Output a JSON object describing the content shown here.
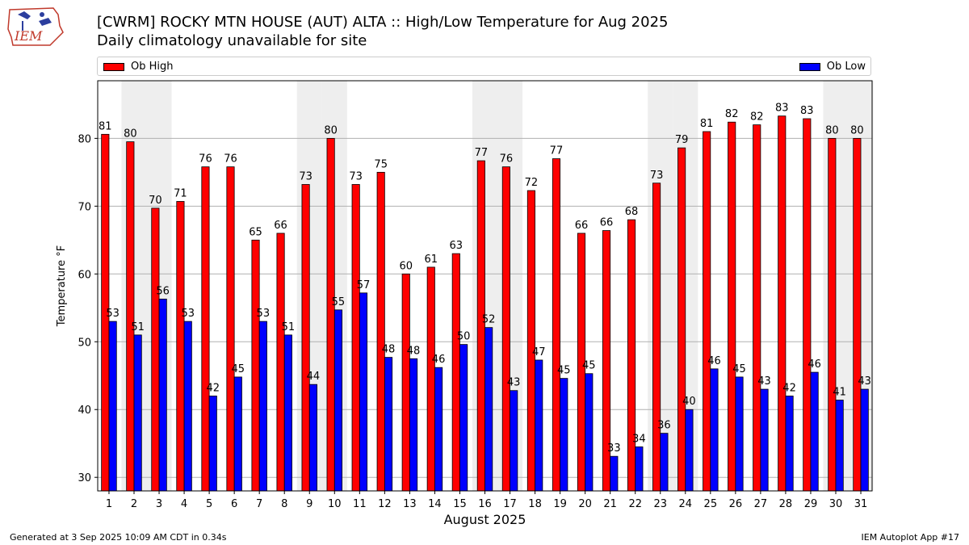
{
  "header": {
    "title": "[CWRM] ROCKY MTN HOUSE (AUT)  ALTA :: High/Low Temperature for Aug 2025",
    "subtitle": "Daily climatology unavailable for site",
    "logo_text": "IEM"
  },
  "footer": {
    "generated": "Generated at 3 Sep 2025 10:09 AM CDT in 0.34s",
    "app": "IEM Autoplot App #17"
  },
  "colors": {
    "high": "#ff0000",
    "low": "#0000ff",
    "weekend_band": "#eeeeee",
    "grid": "#b0b0b0"
  },
  "chart_data": {
    "type": "bar",
    "title": "[CWRM] ROCKY MTN HOUSE (AUT)  ALTA :: High/Low Temperature for Aug 2025",
    "subtitle": "Daily climatology unavailable for site",
    "xlabel": "August 2025",
    "ylabel": "Temperature °F",
    "categories": [
      "1",
      "2",
      "3",
      "4",
      "5",
      "6",
      "7",
      "8",
      "9",
      "10",
      "11",
      "12",
      "13",
      "14",
      "15",
      "16",
      "17",
      "18",
      "19",
      "20",
      "21",
      "22",
      "23",
      "24",
      "25",
      "26",
      "27",
      "28",
      "29",
      "30",
      "31"
    ],
    "series": [
      {
        "name": "Ob High",
        "color": "#ff0000",
        "values": [
          80.6,
          79.5,
          69.7,
          70.7,
          75.8,
          75.8,
          65.0,
          66.0,
          73.2,
          80.0,
          73.2,
          75.0,
          60.0,
          61.0,
          63.0,
          76.7,
          75.8,
          72.3,
          77.0,
          66.0,
          66.4,
          68.0,
          73.4,
          78.6,
          81.0,
          82.4,
          82.0,
          83.3,
          82.9,
          80.0,
          80.0
        ],
        "labels": [
          "81",
          "80",
          "70",
          "71",
          "76",
          "76",
          "65",
          "66",
          "73",
          "80",
          "73",
          "75",
          "60",
          "61",
          "63",
          "77",
          "76",
          "72",
          "77",
          "66",
          "66",
          "68",
          "73",
          "79",
          "81",
          "82",
          "82",
          "83",
          "83",
          "80",
          "80"
        ]
      },
      {
        "name": "Ob Low",
        "color": "#0000ff",
        "values": [
          53.0,
          51.0,
          56.3,
          53.0,
          42.0,
          44.8,
          53.0,
          51.0,
          43.7,
          54.7,
          57.2,
          47.7,
          47.5,
          46.2,
          49.6,
          52.1,
          42.8,
          47.3,
          44.6,
          45.3,
          33.1,
          34.5,
          36.5,
          40.0,
          46.0,
          44.8,
          43.0,
          42.0,
          45.5,
          41.4,
          43.0
        ],
        "labels": [
          "53",
          "51",
          "56",
          "53",
          "42",
          "45",
          "53",
          "51",
          "44",
          "55",
          "57",
          "48",
          "48",
          "46",
          "50",
          "52",
          "43",
          "47",
          "45",
          "45",
          "33",
          "34",
          "36",
          "40",
          "46",
          "45",
          "43",
          "42",
          "46",
          "41",
          "43"
        ]
      }
    ],
    "ylim": [
      28,
      88.5
    ],
    "xlim": [
      0.55,
      31.45
    ],
    "yticks": [
      30,
      40,
      50,
      60,
      70,
      80
    ],
    "weekend_days": [
      2,
      3,
      9,
      10,
      16,
      17,
      23,
      24,
      30,
      31
    ],
    "grid": "horizontal",
    "legend_placement": "top, above plot"
  }
}
